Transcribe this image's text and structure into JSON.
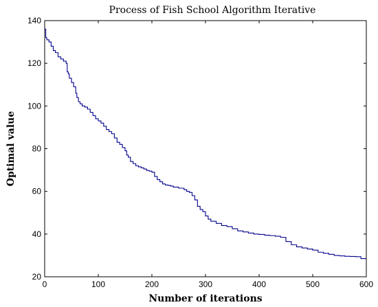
{
  "chart_data": {
    "type": "line",
    "title": "Process of Fish School Algorithm Iterative",
    "xlabel": "Number of iterations",
    "ylabel": "Optimal value",
    "xlim": [
      0,
      600
    ],
    "ylim": [
      20,
      140
    ],
    "xticks": [
      0,
      100,
      200,
      300,
      400,
      500,
      600
    ],
    "yticks": [
      20,
      40,
      60,
      80,
      100,
      120,
      140
    ],
    "grid": false,
    "series": [
      {
        "color": "#00008b",
        "step": true,
        "x": [
          0,
          2,
          4,
          8,
          12,
          16,
          20,
          25,
          30,
          35,
          40,
          42,
          44,
          46,
          50,
          54,
          58,
          60,
          63,
          66,
          70,
          75,
          80,
          85,
          90,
          95,
          100,
          105,
          110,
          115,
          120,
          125,
          130,
          135,
          140,
          145,
          150,
          153,
          156,
          160,
          165,
          170,
          175,
          180,
          185,
          190,
          195,
          200,
          205,
          210,
          215,
          220,
          225,
          230,
          235,
          240,
          250,
          260,
          265,
          270,
          275,
          280,
          285,
          290,
          295,
          300,
          305,
          310,
          320,
          330,
          340,
          350,
          360,
          370,
          380,
          390,
          400,
          410,
          420,
          430,
          440,
          450,
          460,
          470,
          480,
          490,
          500,
          510,
          520,
          530,
          540,
          550,
          560,
          570,
          580,
          590,
          600
        ],
        "y": [
          136,
          132,
          131,
          130,
          128,
          126,
          125,
          123,
          122,
          121,
          120,
          116,
          115,
          113,
          111,
          109,
          106,
          104,
          102,
          101,
          100,
          99.5,
          98.5,
          97,
          95.5,
          94,
          93,
          92,
          90.5,
          89,
          88,
          87,
          85,
          83,
          82,
          80.5,
          79,
          77,
          76,
          74,
          73,
          72,
          71.5,
          71,
          70.5,
          69.8,
          69.5,
          69,
          67,
          65.5,
          64.5,
          63.5,
          63,
          62.8,
          62.5,
          62,
          61.5,
          60.8,
          60,
          59.5,
          58,
          56,
          53,
          51.5,
          50.5,
          48.5,
          47,
          46,
          45,
          44,
          43.5,
          42.5,
          41.5,
          41,
          40.5,
          40,
          39.8,
          39.5,
          39.3,
          39,
          38.5,
          36.5,
          35,
          34,
          33.5,
          33,
          32.5,
          31.5,
          31,
          30.5,
          30,
          29.8,
          29.6,
          29.5,
          29.4,
          28.5,
          28.5
        ]
      }
    ]
  }
}
